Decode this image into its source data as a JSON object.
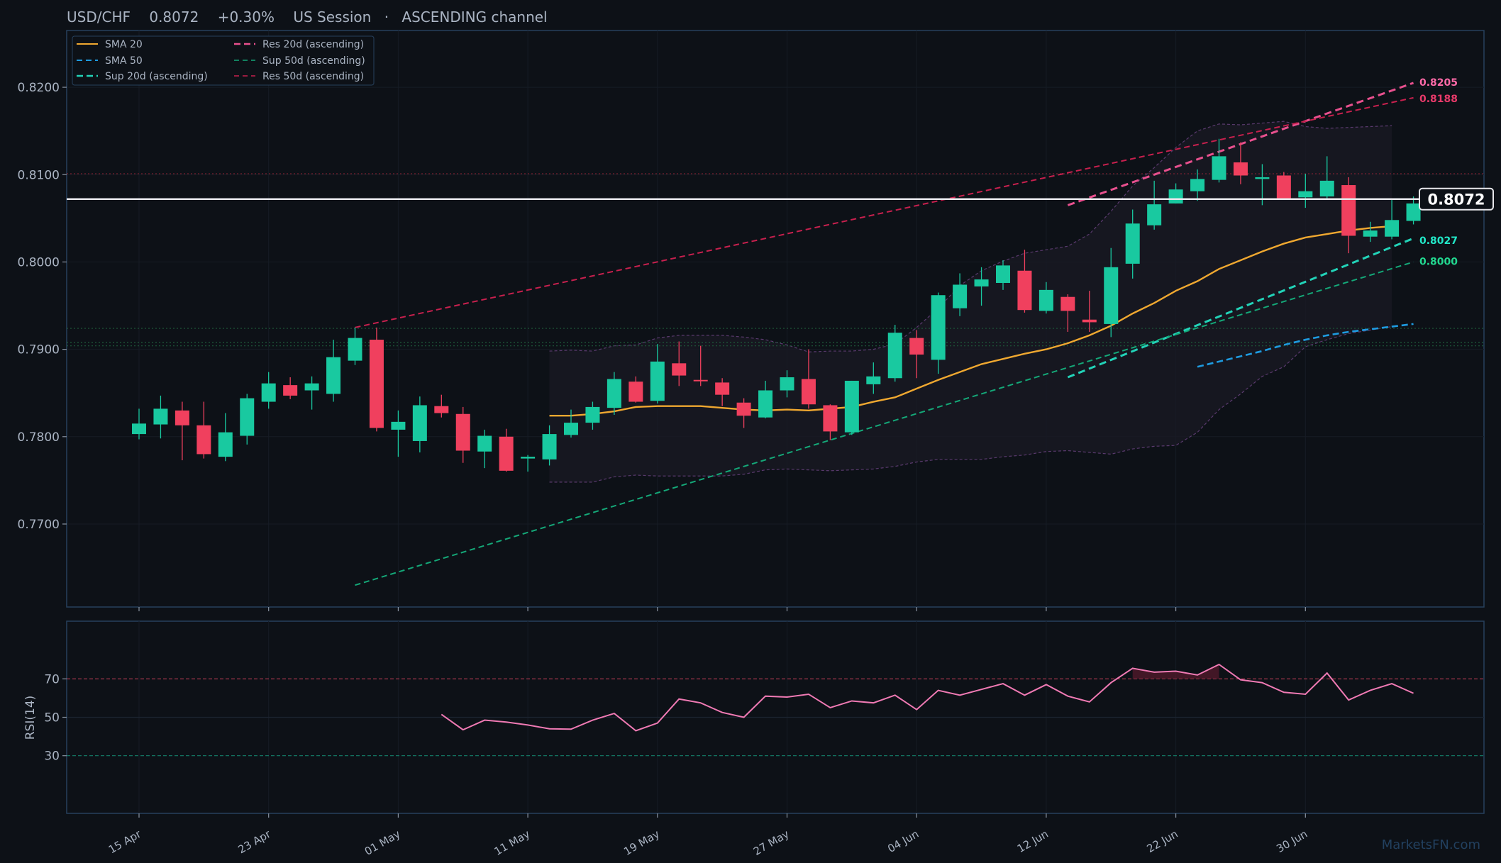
{
  "header": {
    "pair": "USD/CHF",
    "price": "0.8072",
    "change": "+0.30%",
    "session": "US Session",
    "channel": "ASCENDING channel",
    "sep": "·"
  },
  "watermark": "MarketsFN.com",
  "colors": {
    "bull": "#19c9a0",
    "bear": "#f0405e",
    "sma20": "#f0a830",
    "sma50": "#1e9be0",
    "sup20": "#22d3b8",
    "sup50": "#14a878",
    "res20": "#e8508e",
    "res50": "#c8204e",
    "rsi": "#f07ab4"
  },
  "chart_data": {
    "type": "candlestick",
    "symbol": "USD/CHF",
    "x_tick_labels": [
      "15 Apr",
      "23 Apr",
      "01 May",
      "11 May",
      "19 May",
      "27 May",
      "04 Jun",
      "12 Jun",
      "22 Jun",
      "30 Jun"
    ],
    "price_axis": {
      "ticks": [
        "0.7700",
        "0.7800",
        "0.7900",
        "0.8000",
        "0.8100",
        "0.8200"
      ],
      "ylim": [
        0.7605,
        0.8265
      ]
    },
    "rsi_axis": {
      "label": "RSI(14)",
      "ticks": [
        "30",
        "50",
        "70"
      ],
      "ylim": [
        0,
        100
      ]
    },
    "candles": [
      {
        "o": 0.7803,
        "h": 0.7832,
        "l": 0.7797,
        "c": 0.7815
      },
      {
        "o": 0.7814,
        "h": 0.7847,
        "l": 0.7798,
        "c": 0.7832
      },
      {
        "o": 0.783,
        "h": 0.784,
        "l": 0.7773,
        "c": 0.7813
      },
      {
        "o": 0.7813,
        "h": 0.784,
        "l": 0.7775,
        "c": 0.778
      },
      {
        "o": 0.7777,
        "h": 0.7827,
        "l": 0.7772,
        "c": 0.7805
      },
      {
        "o": 0.7801,
        "h": 0.7849,
        "l": 0.7791,
        "c": 0.7844
      },
      {
        "o": 0.784,
        "h": 0.7874,
        "l": 0.7832,
        "c": 0.7861
      },
      {
        "o": 0.7859,
        "h": 0.7868,
        "l": 0.7843,
        "c": 0.7847
      },
      {
        "o": 0.7853,
        "h": 0.7869,
        "l": 0.7831,
        "c": 0.7861
      },
      {
        "o": 0.7849,
        "h": 0.7911,
        "l": 0.784,
        "c": 0.7891
      },
      {
        "o": 0.7887,
        "h": 0.7925,
        "l": 0.7882,
        "c": 0.7913
      },
      {
        "o": 0.7911,
        "h": 0.7925,
        "l": 0.7806,
        "c": 0.781
      },
      {
        "o": 0.7808,
        "h": 0.783,
        "l": 0.7777,
        "c": 0.7817
      },
      {
        "o": 0.7795,
        "h": 0.7846,
        "l": 0.7782,
        "c": 0.7836
      },
      {
        "o": 0.7835,
        "h": 0.7848,
        "l": 0.7822,
        "c": 0.7827
      },
      {
        "o": 0.7826,
        "h": 0.7834,
        "l": 0.777,
        "c": 0.7784
      },
      {
        "o": 0.7783,
        "h": 0.7808,
        "l": 0.7764,
        "c": 0.7801
      },
      {
        "o": 0.78,
        "h": 0.7809,
        "l": 0.776,
        "c": 0.7761
      },
      {
        "o": 0.7775,
        "h": 0.7779,
        "l": 0.776,
        "c": 0.7777
      },
      {
        "o": 0.7774,
        "h": 0.7813,
        "l": 0.7767,
        "c": 0.7803
      },
      {
        "o": 0.7802,
        "h": 0.7831,
        "l": 0.7799,
        "c": 0.7816
      },
      {
        "o": 0.7816,
        "h": 0.784,
        "l": 0.7808,
        "c": 0.7834
      },
      {
        "o": 0.7833,
        "h": 0.7874,
        "l": 0.7825,
        "c": 0.7866
      },
      {
        "o": 0.7863,
        "h": 0.7869,
        "l": 0.7839,
        "c": 0.784
      },
      {
        "o": 0.7841,
        "h": 0.7906,
        "l": 0.7838,
        "c": 0.7886
      },
      {
        "o": 0.7884,
        "h": 0.7909,
        "l": 0.7858,
        "c": 0.787
      },
      {
        "o": 0.7865,
        "h": 0.7904,
        "l": 0.7858,
        "c": 0.7864
      },
      {
        "o": 0.7862,
        "h": 0.7867,
        "l": 0.7835,
        "c": 0.7848
      },
      {
        "o": 0.7839,
        "h": 0.7844,
        "l": 0.781,
        "c": 0.7824
      },
      {
        "o": 0.7822,
        "h": 0.7864,
        "l": 0.7821,
        "c": 0.7853
      },
      {
        "o": 0.7853,
        "h": 0.7876,
        "l": 0.7845,
        "c": 0.7868
      },
      {
        "o": 0.7866,
        "h": 0.79,
        "l": 0.7832,
        "c": 0.7837
      },
      {
        "o": 0.7836,
        "h": 0.7837,
        "l": 0.7796,
        "c": 0.7806
      },
      {
        "o": 0.7805,
        "h": 0.7864,
        "l": 0.7802,
        "c": 0.7864
      },
      {
        "o": 0.786,
        "h": 0.7885,
        "l": 0.7849,
        "c": 0.7869
      },
      {
        "o": 0.7867,
        "h": 0.7928,
        "l": 0.7863,
        "c": 0.7919
      },
      {
        "o": 0.7913,
        "h": 0.7922,
        "l": 0.7867,
        "c": 0.7894
      },
      {
        "o": 0.7888,
        "h": 0.7965,
        "l": 0.7872,
        "c": 0.7962
      },
      {
        "o": 0.7947,
        "h": 0.7987,
        "l": 0.7938,
        "c": 0.7974
      },
      {
        "o": 0.7972,
        "h": 0.7994,
        "l": 0.795,
        "c": 0.798
      },
      {
        "o": 0.7976,
        "h": 0.8002,
        "l": 0.7968,
        "c": 0.7996
      },
      {
        "o": 0.799,
        "h": 0.8014,
        "l": 0.7942,
        "c": 0.7945
      },
      {
        "o": 0.7944,
        "h": 0.7977,
        "l": 0.7941,
        "c": 0.7968
      },
      {
        "o": 0.796,
        "h": 0.7963,
        "l": 0.792,
        "c": 0.7944
      },
      {
        "o": 0.7934,
        "h": 0.7967,
        "l": 0.792,
        "c": 0.7931
      },
      {
        "o": 0.7929,
        "h": 0.8016,
        "l": 0.7914,
        "c": 0.7994
      },
      {
        "o": 0.7998,
        "h": 0.806,
        "l": 0.7981,
        "c": 0.8044
      },
      {
        "o": 0.8042,
        "h": 0.8093,
        "l": 0.8037,
        "c": 0.8066
      },
      {
        "o": 0.8067,
        "h": 0.809,
        "l": 0.8067,
        "c": 0.8083
      },
      {
        "o": 0.8081,
        "h": 0.8106,
        "l": 0.807,
        "c": 0.8095
      },
      {
        "o": 0.8094,
        "h": 0.8141,
        "l": 0.8091,
        "c": 0.8121
      },
      {
        "o": 0.8114,
        "h": 0.8137,
        "l": 0.8089,
        "c": 0.8099
      },
      {
        "o": 0.8095,
        "h": 0.8112,
        "l": 0.8065,
        "c": 0.8097
      },
      {
        "o": 0.8099,
        "h": 0.8103,
        "l": 0.8073,
        "c": 0.8073
      },
      {
        "o": 0.8074,
        "h": 0.8101,
        "l": 0.8062,
        "c": 0.8081
      },
      {
        "o": 0.8075,
        "h": 0.8121,
        "l": 0.8072,
        "c": 0.8093
      },
      {
        "o": 0.8088,
        "h": 0.8097,
        "l": 0.801,
        "c": 0.803
      },
      {
        "o": 0.8029,
        "h": 0.8046,
        "l": 0.8023,
        "c": 0.8036
      },
      {
        "o": 0.8029,
        "h": 0.8072,
        "l": 0.8026,
        "c": 0.8048
      },
      {
        "o": 0.8047,
        "h": 0.8075,
        "l": 0.8043,
        "c": 0.8067
      }
    ],
    "sma20": {
      "start_index": 19,
      "values": [
        0.7824,
        0.7824,
        0.7826,
        0.7829,
        0.7834,
        0.7835,
        0.7835,
        0.7835,
        0.7833,
        0.7831,
        0.783,
        0.7831,
        0.783,
        0.7832,
        0.7834,
        0.784,
        0.7845,
        0.7855,
        0.7865,
        0.7874,
        0.7883,
        0.7889,
        0.7895,
        0.79,
        0.7907,
        0.7916,
        0.7927,
        0.7941,
        0.7953,
        0.7967,
        0.7978,
        0.7992,
        0.8002,
        0.8012,
        0.8021,
        0.8028,
        0.8032,
        0.8036,
        0.8039,
        0.8041
      ]
    },
    "sma50": {
      "start_index": 49,
      "values": [
        0.788,
        0.7886,
        0.7892,
        0.7898,
        0.7905,
        0.7911,
        0.7916,
        0.792,
        0.7923,
        0.7926,
        0.7929
      ]
    },
    "bollinger_upper": {
      "start_index": 19,
      "values": [
        0.7898,
        0.7899,
        0.7898,
        0.7904,
        0.7905,
        0.7913,
        0.7916,
        0.7916,
        0.7916,
        0.7914,
        0.7911,
        0.7905,
        0.7897,
        0.7898,
        0.7898,
        0.79,
        0.7906,
        0.7925,
        0.7947,
        0.7973,
        0.799,
        0.8001,
        0.801,
        0.8014,
        0.8018,
        0.8032,
        0.8058,
        0.8087,
        0.8108,
        0.8131,
        0.815,
        0.8158,
        0.8157,
        0.8159,
        0.8161,
        0.8155,
        0.8153,
        0.8154,
        0.8155,
        0.8156
      ]
    },
    "bollinger_lower": {
      "start_index": 19,
      "values": [
        0.7748,
        0.7748,
        0.7748,
        0.7754,
        0.7756,
        0.7755,
        0.7755,
        0.7755,
        0.7755,
        0.7757,
        0.7762,
        0.7763,
        0.7762,
        0.7761,
        0.7762,
        0.7763,
        0.7766,
        0.7771,
        0.7774,
        0.7774,
        0.7774,
        0.7777,
        0.7779,
        0.7783,
        0.7784,
        0.7782,
        0.778,
        0.7786,
        0.7789,
        0.779,
        0.7805,
        0.7831,
        0.7849,
        0.7869,
        0.788,
        0.7903,
        0.7911,
        0.7918,
        0.7922,
        0.7926
      ]
    },
    "trendlines": [
      {
        "name": "Res 20d (ascending)",
        "from": [
          43,
          0.8065
        ],
        "to": [
          59,
          0.8205
        ],
        "end_label": "0.8205"
      },
      {
        "name": "Sup 20d (ascending)",
        "from": [
          43,
          0.7868
        ],
        "to": [
          59,
          0.8027
        ],
        "end_label": "0.8027"
      },
      {
        "name": "Res 50d (ascending)",
        "from": [
          10,
          0.7925
        ],
        "to": [
          59,
          0.8188
        ],
        "end_label": "0.8188"
      },
      {
        "name": "Sup 50d (ascending)",
        "from": [
          10,
          0.763
        ],
        "to": [
          59,
          0.8
        ],
        "end_label": "0.8000"
      }
    ],
    "horizontal_levels": [
      0.7904,
      0.7908,
      0.7924,
      0.8101
    ],
    "last_price": 0.8072,
    "last_price_label": "0.8072",
    "rsi": {
      "start_index": 14,
      "values": [
        51.5,
        43.5,
        48.5,
        47.5,
        46.0,
        44.0,
        43.8,
        48.5,
        52.0,
        43.0,
        47.0,
        59.5,
        57.5,
        52.5,
        50.0,
        61.0,
        60.5,
        62.0,
        55.0,
        58.5,
        57.5,
        61.5,
        54.0,
        64.0,
        61.5,
        64.5,
        67.5,
        61.5,
        67.0,
        61.0,
        58.0,
        68.0,
        75.5,
        73.5,
        74.0,
        72.0,
        77.5,
        69.5,
        68.0,
        63.0,
        62.0,
        73.0,
        59.0,
        64.0,
        67.5,
        62.5
      ]
    }
  },
  "legend": [
    {
      "label": "SMA 20",
      "color": "#f0a830",
      "dash": "",
      "width": 2
    },
    {
      "label": "Res 20d (ascending)",
      "color": "#e8508e",
      "dash": "9 5",
      "width": 2.5
    },
    {
      "label": "SMA 50",
      "color": "#1e9be0",
      "dash": "8 5",
      "width": 2
    },
    {
      "label": "Sup 50d (ascending)",
      "color": "#14a878",
      "dash": "7 5",
      "width": 1.6
    },
    {
      "label": "Sup 20d (ascending)",
      "color": "#22d3b8",
      "dash": "9 5",
      "width": 2.5
    },
    {
      "label": "Res 50d (ascending)",
      "color": "#c8204e",
      "dash": "7 5",
      "width": 1.6
    }
  ]
}
